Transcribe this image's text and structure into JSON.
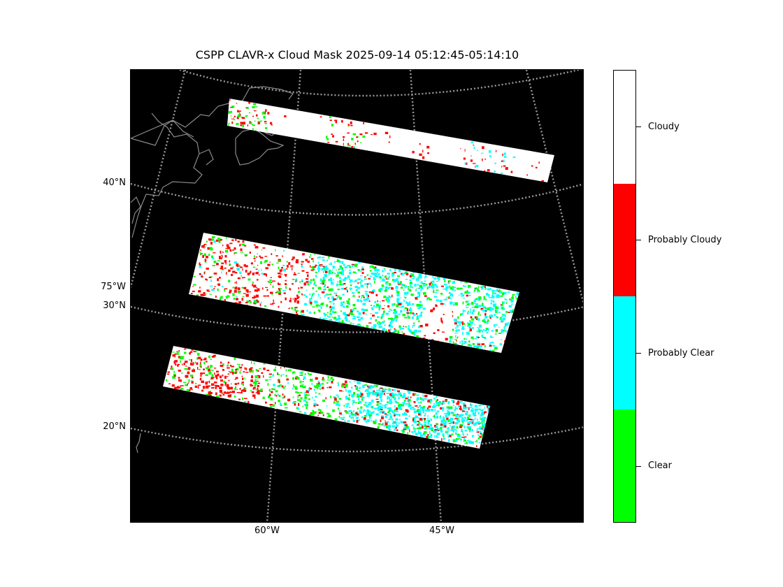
{
  "title": "CSPP CLAVR-x Cloud Mask 2025-09-14 05:12:45-05:14:10",
  "map": {
    "background_color": "#000000",
    "graticule_color": "#9a9a9a",
    "coastline_color": "#8a8a8a",
    "lat_labels": [
      {
        "id": "40n",
        "text": "40°N"
      },
      {
        "id": "30n",
        "text": "30°N"
      },
      {
        "id": "20n",
        "text": "20°N"
      }
    ],
    "lon_labels": [
      {
        "id": "75w",
        "text": "75°W"
      },
      {
        "id": "60w",
        "text": "60°W"
      },
      {
        "id": "45w",
        "text": "45°W"
      }
    ],
    "swaths": [
      {
        "id": "north",
        "dominant_class": "Cloudy"
      },
      {
        "id": "middle",
        "dominant_class": "Probably Clear"
      },
      {
        "id": "south",
        "dominant_class": "Probably Clear"
      }
    ]
  },
  "colorbar": {
    "classes": [
      {
        "label": "Cloudy",
        "color": "#ffffff"
      },
      {
        "label": "Probably Cloudy",
        "color": "#ff0000"
      },
      {
        "label": "Probably Clear",
        "color": "#00ffff"
      },
      {
        "label": "Clear",
        "color": "#00ff00"
      }
    ]
  }
}
